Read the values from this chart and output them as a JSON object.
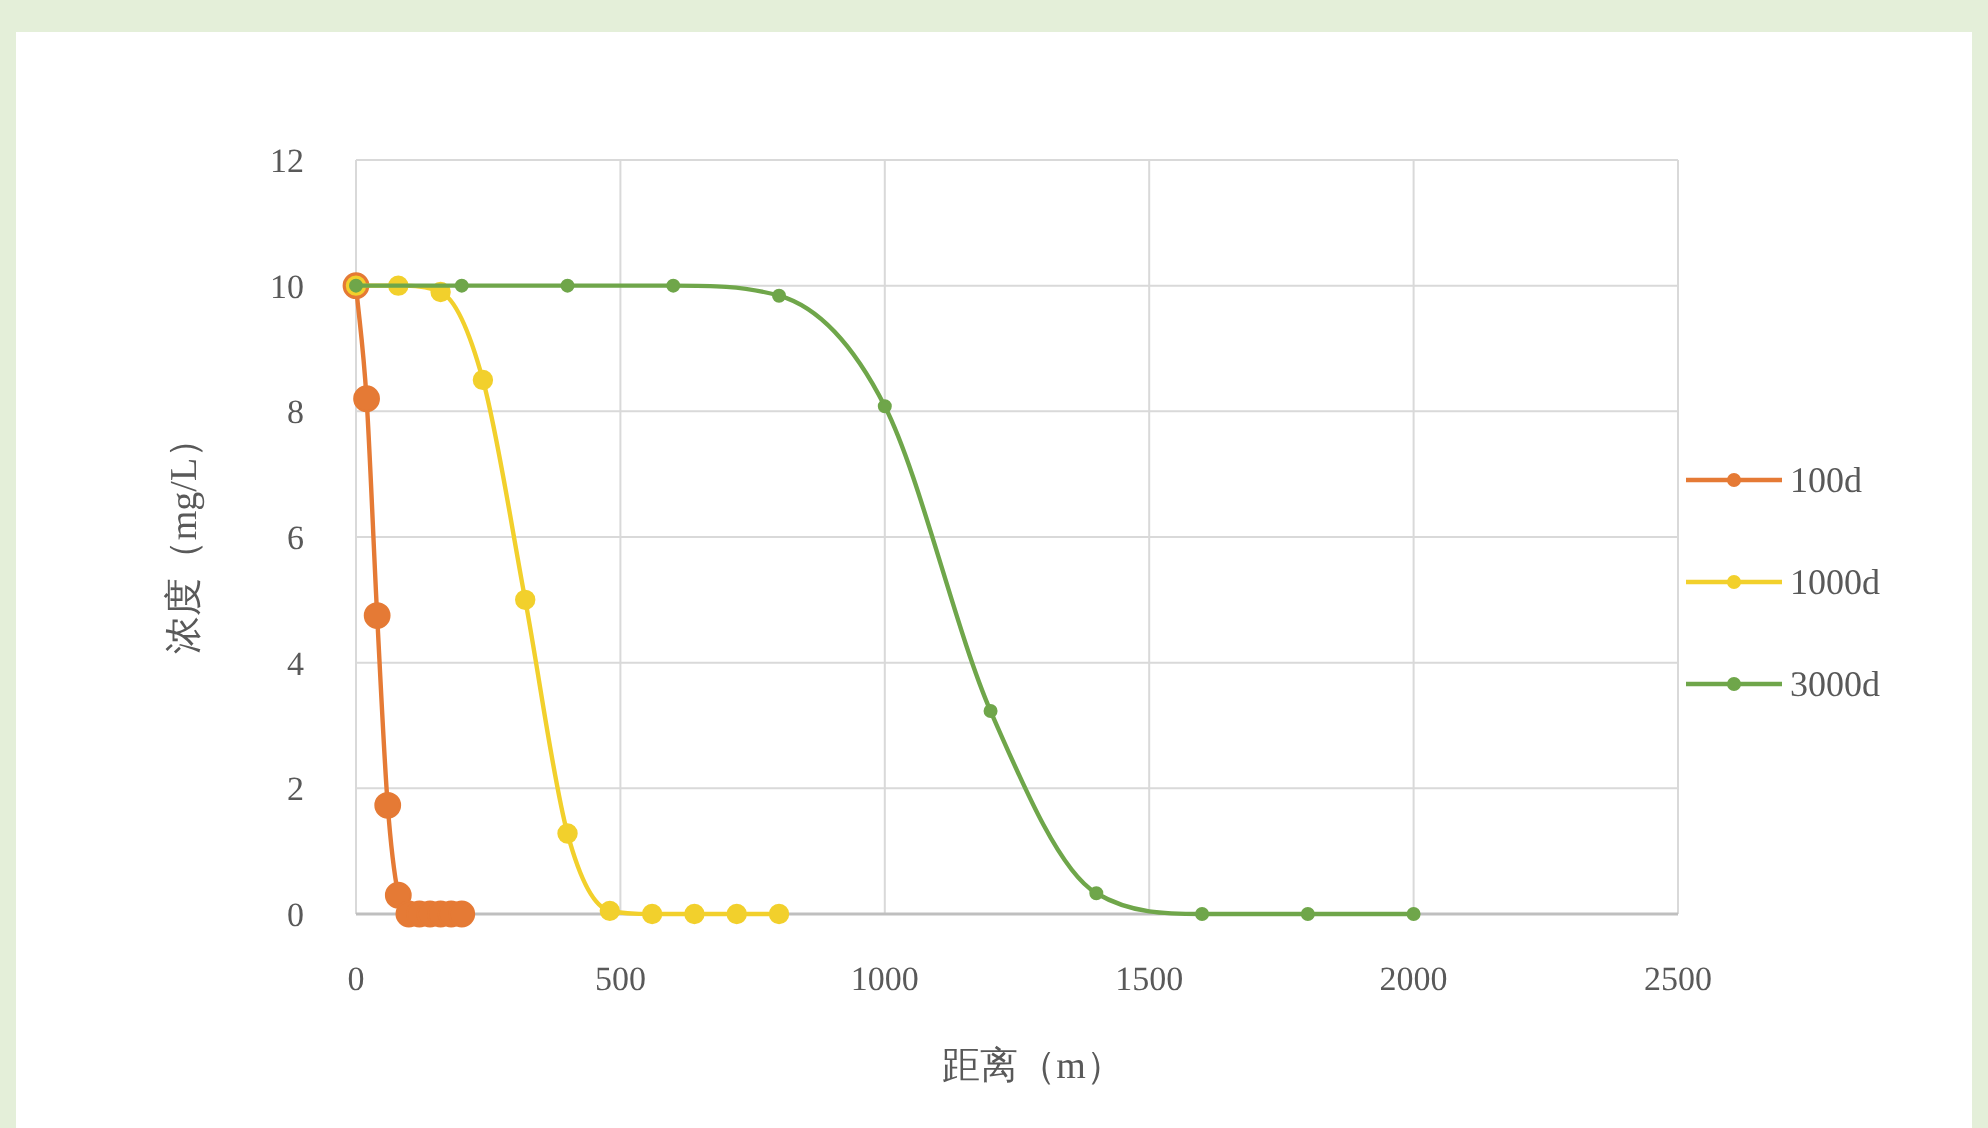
{
  "chart_data": {
    "type": "line",
    "xlabel": "距离（m）",
    "ylabel": "浓度（mg/L）",
    "xlim": [
      0,
      2500
    ],
    "xticks": [
      0,
      500,
      1000,
      1500,
      2000,
      2500
    ],
    "ylim": [
      0,
      12
    ],
    "yticks": [
      0,
      2,
      4,
      6,
      8,
      10,
      12
    ],
    "grid": true,
    "legend": "right",
    "marker": "circle",
    "line_style": "solid",
    "series": [
      {
        "name": "100d",
        "color": "#e57a35",
        "x": [
          0,
          20,
          40,
          60,
          80,
          100,
          120,
          140,
          160,
          180,
          200
        ],
        "values": [
          10,
          8.2,
          4.75,
          1.73,
          0.3,
          0,
          0,
          0,
          0,
          0,
          0
        ]
      },
      {
        "name": "1000d",
        "color": "#f2d02c",
        "x": [
          0,
          80,
          160,
          240,
          320,
          400,
          480,
          560,
          640,
          720,
          800
        ],
        "values": [
          10,
          10,
          9.9,
          8.5,
          5.0,
          1.28,
          0.05,
          0,
          0,
          0,
          0
        ]
      },
      {
        "name": "3000d",
        "color": "#6fa64a",
        "x": [
          0,
          200,
          400,
          600,
          800,
          1000,
          1200,
          1400,
          1600,
          1800,
          2000
        ],
        "values": [
          10,
          10,
          10,
          10,
          9.84,
          8.08,
          3.23,
          0.33,
          0,
          0,
          0
        ]
      }
    ]
  }
}
